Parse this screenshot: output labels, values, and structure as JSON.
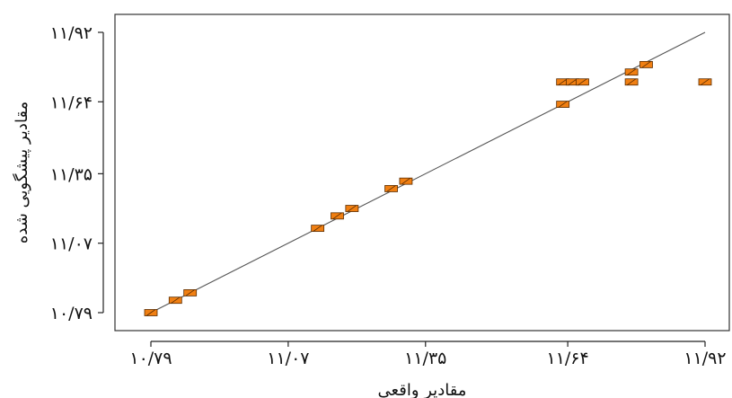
{
  "chart_data": {
    "type": "scatter",
    "title": "",
    "xlabel": "مقادیر واقعی",
    "ylabel": "مقادیر پیشگویی شده",
    "xlim": [
      10.79,
      11.92
    ],
    "ylim": [
      10.79,
      11.92
    ],
    "grid": false,
    "x_ticks": [
      {
        "value": 10.79,
        "label": "۱۰/۷۹"
      },
      {
        "value": 11.07,
        "label": "۱۱/۰۷"
      },
      {
        "value": 11.35,
        "label": "۱۱/۳۵"
      },
      {
        "value": 11.64,
        "label": "۱۱/۶۴"
      },
      {
        "value": 11.92,
        "label": "۱۱/۹۲"
      }
    ],
    "y_ticks": [
      {
        "value": 10.79,
        "label": "۱۰/۷۹"
      },
      {
        "value": 11.07,
        "label": "۱۱/۰۷"
      },
      {
        "value": 11.35,
        "label": "۱۱/۳۵"
      },
      {
        "value": 11.64,
        "label": "۱۱/۶۴"
      },
      {
        "value": 11.92,
        "label": "۱۱/۹۲"
      }
    ],
    "reference_line": {
      "from": [
        10.79,
        10.79
      ],
      "to": [
        11.92,
        11.92
      ]
    },
    "series": [
      {
        "marker_color": "#f07f12",
        "points": [
          {
            "x": 10.79,
            "y": 10.79
          },
          {
            "x": 10.84,
            "y": 10.84
          },
          {
            "x": 10.87,
            "y": 10.87
          },
          {
            "x": 11.13,
            "y": 11.13
          },
          {
            "x": 11.17,
            "y": 11.18
          },
          {
            "x": 11.2,
            "y": 11.21
          },
          {
            "x": 11.28,
            "y": 11.29
          },
          {
            "x": 11.31,
            "y": 11.32
          },
          {
            "x": 11.63,
            "y": 11.63
          },
          {
            "x": 11.63,
            "y": 11.72
          },
          {
            "x": 11.65,
            "y": 11.72
          },
          {
            "x": 11.67,
            "y": 11.72
          },
          {
            "x": 11.77,
            "y": 11.76
          },
          {
            "x": 11.8,
            "y": 11.79
          },
          {
            "x": 11.77,
            "y": 11.72
          },
          {
            "x": 11.92,
            "y": 11.72
          }
        ]
      }
    ]
  }
}
